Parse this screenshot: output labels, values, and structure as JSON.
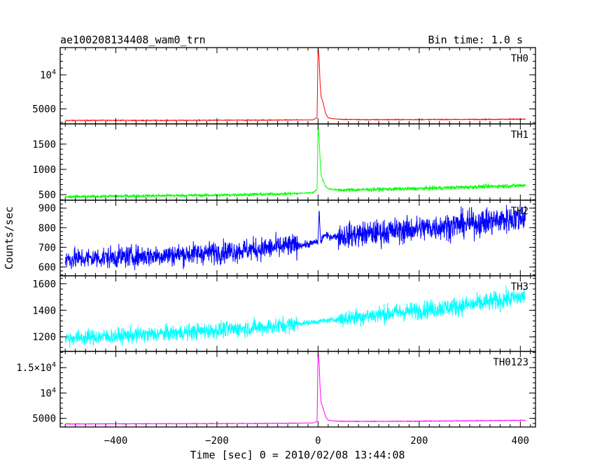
{
  "chart_data": {
    "type": "line",
    "title_left": "ae100208134408_wam0_trn",
    "title_right": "Bin time: 1.0 s",
    "xlabel": "Time [sec] 0 = 2010/02/08 13:44:08",
    "ylabel": "Counts/sec",
    "xlim": [
      -510,
      430
    ],
    "xticks": [
      -400,
      -200,
      0,
      200,
      400
    ],
    "grid": false,
    "panels": [
      {
        "name": "TH0",
        "color": "#ff0000",
        "ylim": [
          2800,
          14000
        ],
        "yticks": [
          {
            "v": 5000,
            "label": "5000"
          },
          {
            "v": 10000,
            "label": "10^4"
          }
        ],
        "series": {
          "x": [
            -500,
            -450,
            -400,
            -350,
            -300,
            -250,
            -200,
            -150,
            -100,
            -50,
            -10,
            -2,
            0,
            2,
            4,
            6,
            10,
            15,
            20,
            30,
            50,
            100,
            150,
            200,
            250,
            300,
            350,
            400,
            410
          ],
          "y": [
            3300,
            3320,
            3330,
            3310,
            3320,
            3330,
            3340,
            3350,
            3360,
            3380,
            3400,
            3700,
            14000,
            12500,
            8800,
            6800,
            5900,
            4300,
            3700,
            3550,
            3460,
            3420,
            3430,
            3440,
            3450,
            3460,
            3470,
            3500,
            3480
          ]
        }
      },
      {
        "name": "TH1",
        "color": "#00ff00",
        "ylim": [
          390,
          1900
        ],
        "yticks": [
          {
            "v": 500,
            "label": "500"
          },
          {
            "v": 1000,
            "label": "1000"
          },
          {
            "v": 1500,
            "label": "1500"
          }
        ],
        "series": {
          "x": [
            -500,
            -400,
            -300,
            -200,
            -100,
            -50,
            -10,
            -2,
            0,
            2,
            4,
            6,
            10,
            15,
            20,
            30,
            50,
            100,
            200,
            300,
            400,
            410
          ],
          "y": [
            455,
            470,
            480,
            490,
            510,
            520,
            540,
            600,
            1850,
            1600,
            1200,
            900,
            780,
            660,
            620,
            600,
            590,
            600,
            620,
            650,
            680,
            690
          ]
        }
      },
      {
        "name": "TH2",
        "color": "#0000ff",
        "ylim": [
          555,
          940
        ],
        "yticks": [
          {
            "v": 600,
            "label": "600"
          },
          {
            "v": 700,
            "label": "700"
          },
          {
            "v": 800,
            "label": "800"
          },
          {
            "v": 900,
            "label": "900"
          }
        ],
        "series": {
          "x": [
            -500,
            -400,
            -300,
            -200,
            -100,
            -20,
            0,
            2,
            5,
            10,
            30,
            100,
            200,
            300,
            400,
            410
          ],
          "y": [
            640,
            650,
            660,
            675,
            695,
            715,
            730,
            900,
            720,
            760,
            755,
            770,
            795,
            820,
            850,
            860
          ]
        }
      },
      {
        "name": "TH3",
        "color": "#00ffff",
        "ylim": [
          1090,
          1660
        ],
        "yticks": [
          {
            "v": 1200,
            "label": "1200"
          },
          {
            "v": 1400,
            "label": "1400"
          },
          {
            "v": 1600,
            "label": "1600"
          }
        ],
        "series": {
          "x": [
            -500,
            -400,
            -300,
            -200,
            -100,
            0,
            100,
            200,
            300,
            400,
            410
          ],
          "y": [
            1190,
            1205,
            1225,
            1250,
            1275,
            1315,
            1360,
            1400,
            1440,
            1500,
            1510
          ]
        }
      },
      {
        "name": "TH0123",
        "color": "#ff00ff",
        "ylim": [
          3300,
          18200
        ],
        "yticks": [
          {
            "v": 5000,
            "label": "5000"
          },
          {
            "v": 10000,
            "label": "10^4"
          },
          {
            "v": 15000,
            "label": "1.5×10^4"
          }
        ],
        "series": {
          "x": [
            -500,
            -450,
            -400,
            -300,
            -200,
            -100,
            -50,
            -10,
            -2,
            0,
            2,
            4,
            6,
            10,
            15,
            20,
            30,
            50,
            100,
            200,
            300,
            400,
            410
          ],
          "y": [
            3900,
            3910,
            3930,
            3950,
            3980,
            4010,
            4050,
            4100,
            4400,
            18200,
            16000,
            11000,
            8200,
            7000,
            5300,
            4650,
            4500,
            4420,
            4400,
            4450,
            4530,
            4620,
            4600
          ]
        }
      }
    ]
  }
}
